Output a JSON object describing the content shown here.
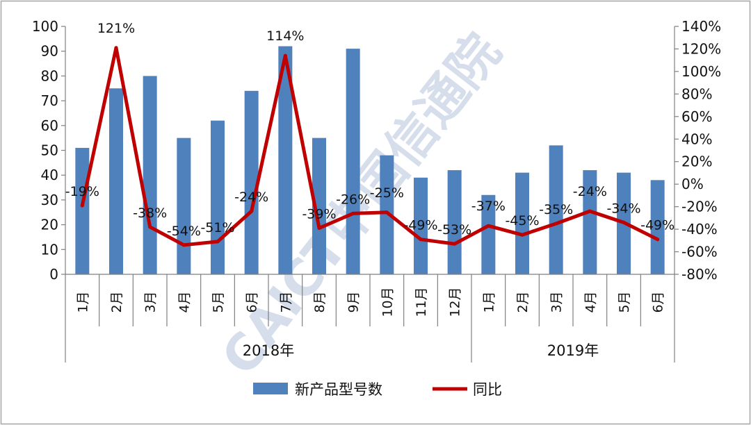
{
  "chart_data": {
    "type": "bar+line",
    "title": "",
    "categories": [
      "1月",
      "2月",
      "3月",
      "4月",
      "5月",
      "6月",
      "7月",
      "8月",
      "9月",
      "10月",
      "11月",
      "12月",
      "1月",
      "2月",
      "3月",
      "4月",
      "5月",
      "6月"
    ],
    "groups": [
      {
        "label": "2018年",
        "count": 12
      },
      {
        "label": "2019年",
        "count": 6
      }
    ],
    "series": [
      {
        "name": "新产品型号数",
        "type": "bar",
        "axis": "left",
        "color": "#4F81BD",
        "values": [
          51,
          75,
          80,
          55,
          62,
          74,
          92,
          55,
          91,
          48,
          39,
          42,
          32,
          41,
          52,
          42,
          41,
          38
        ]
      },
      {
        "name": "同比",
        "type": "line",
        "axis": "right",
        "color": "#C00000",
        "values": [
          -19,
          121,
          -38,
          -54,
          -51,
          -24,
          114,
          -39,
          -26,
          -25,
          -49,
          -53,
          -37,
          -45,
          -35,
          -24,
          -34,
          -49
        ],
        "labels": [
          "-19%",
          "121%",
          "-38%",
          "-54%",
          "-51%",
          "-24%",
          "114%",
          "-39%",
          "-26%",
          "-25%",
          "-49%",
          "-53%",
          "-37%",
          "-45%",
          "-35%",
          "-24%",
          "-34%",
          "-49%"
        ]
      }
    ],
    "left_axis": {
      "min": 0,
      "max": 100,
      "step": 10,
      "ticks": [
        "0",
        "10",
        "20",
        "30",
        "40",
        "50",
        "60",
        "70",
        "80",
        "90",
        "100"
      ]
    },
    "right_axis": {
      "min": -80,
      "max": 140,
      "step": 20,
      "ticks": [
        "-80%",
        "-60%",
        "-40%",
        "-20%",
        "0%",
        "20%",
        "40%",
        "60%",
        "80%",
        "100%",
        "120%",
        "140%"
      ]
    },
    "legend": {
      "placement": "bottom",
      "items": [
        "新产品型号数",
        "同比"
      ]
    },
    "watermark": {
      "text": "CAICT中国信通院",
      "color": "#c9d3e6"
    },
    "grid": false
  }
}
